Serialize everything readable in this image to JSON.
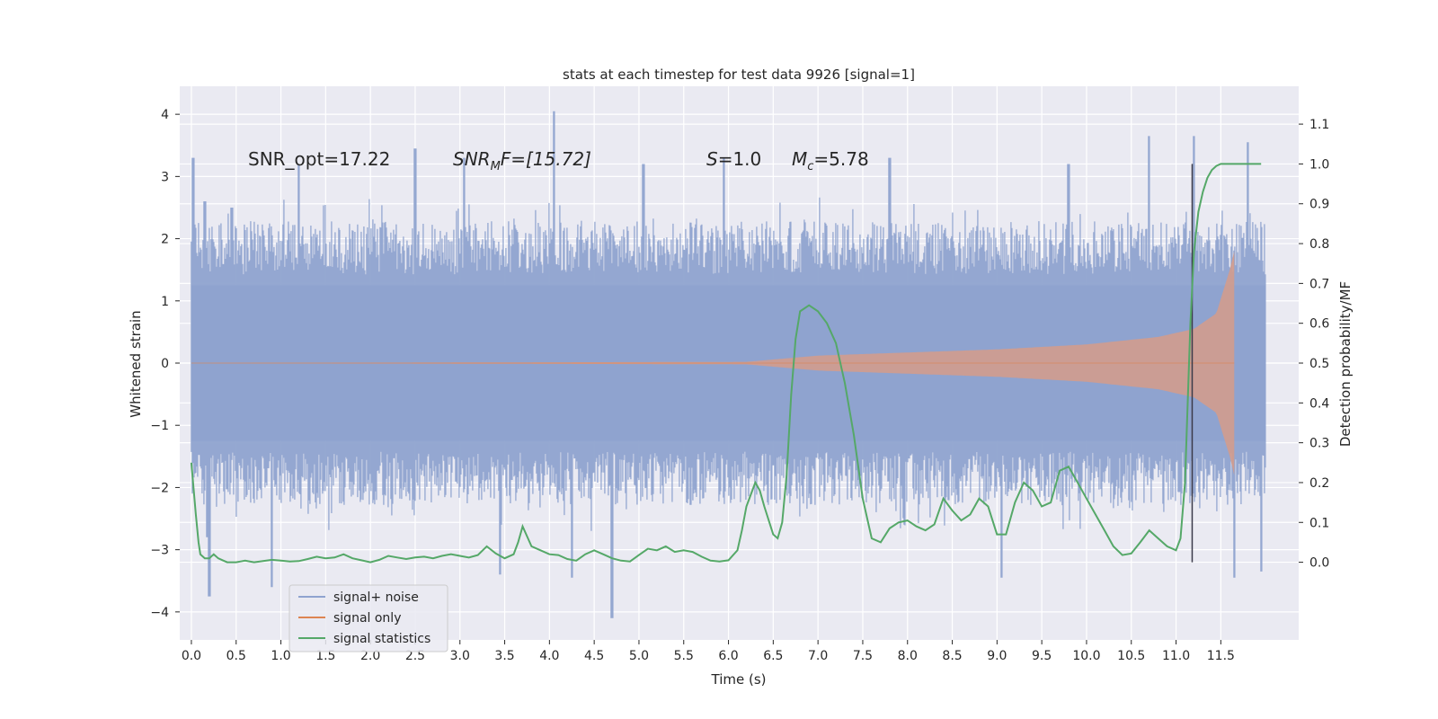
{
  "chart_data": {
    "type": "line",
    "title": "stats at each timestep for test data 9926 [signal=1]",
    "xlabel": "Time (s)",
    "ylabel": "Whitened strain",
    "y2label": "Detection probability/MF",
    "xlim": [
      -0.13,
      12.37
    ],
    "ylim": [
      -4.45,
      4.45
    ],
    "y2lim": [
      -0.195,
      1.195
    ],
    "x_ticks": [
      0.0,
      0.5,
      1.0,
      1.5,
      2.0,
      2.5,
      3.0,
      3.5,
      4.0,
      4.5,
      5.0,
      5.5,
      6.0,
      6.5,
      7.0,
      7.5,
      8.0,
      8.5,
      9.0,
      9.5,
      10.0,
      10.5,
      11.0,
      11.5
    ],
    "x_tick_labels": [
      "0.0",
      "0.5",
      "1.0",
      "1.5",
      "2.0",
      "2.5",
      "3.0",
      "3.5",
      "4.0",
      "4.5",
      "5.0",
      "5.5",
      "6.0",
      "6.5",
      "7.0",
      "7.5",
      "8.0",
      "8.5",
      "9.0",
      "9.5",
      "10.0",
      "10.5",
      "11.0",
      "11.5"
    ],
    "y_ticks": [
      -4,
      -3,
      -2,
      -1,
      0,
      1,
      2,
      3,
      4
    ],
    "y_tick_labels": [
      "−4",
      "−3",
      "−2",
      "−1",
      "0",
      "1",
      "2",
      "3",
      "4"
    ],
    "y2_ticks": [
      0.0,
      0.1,
      0.2,
      0.3,
      0.4,
      0.5,
      0.6,
      0.7,
      0.8,
      0.9,
      1.0,
      1.1
    ],
    "y2_tick_labels": [
      "0.0",
      "0.1",
      "0.2",
      "0.3",
      "0.4",
      "0.5",
      "0.6",
      "0.7",
      "0.8",
      "0.9",
      "1.0",
      "1.1"
    ],
    "grid": true,
    "legend_position": "lower-left",
    "annotations": {
      "snr_opt": "SNR_opt=17.22",
      "snr_mf_sym": "SNR",
      "snr_mf_sub": "M",
      "snr_mf_rest": "F=[15.72]",
      "s_sym": "S",
      "s_rest": "=1.0",
      "mc_sym": "M",
      "mc_sub": "c",
      "mc_rest": "=5.78"
    },
    "vertical_marker_x": 11.18,
    "series": [
      {
        "name": "signal+ noise",
        "axis": "left",
        "color": "#8fa3cf",
        "x_range": [
          0.0,
          12.0
        ],
        "envelope_typical": 1.9,
        "peaks": [
          [
            0.02,
            3.3
          ],
          [
            0.15,
            2.6
          ],
          [
            0.45,
            2.5
          ],
          [
            1.2,
            3.2
          ],
          [
            2.5,
            3.45
          ],
          [
            3.05,
            3.3
          ],
          [
            4.05,
            4.05
          ],
          [
            5.05,
            3.2
          ],
          [
            5.95,
            3.3
          ],
          [
            7.8,
            3.3
          ],
          [
            9.8,
            3.2
          ],
          [
            10.7,
            3.65
          ],
          [
            11.2,
            3.65
          ],
          [
            11.8,
            3.55
          ],
          [
            0.18,
            -2.8
          ],
          [
            0.2,
            -3.75
          ],
          [
            0.9,
            -3.6
          ],
          [
            3.45,
            -3.4
          ],
          [
            4.25,
            -3.45
          ],
          [
            4.7,
            -4.1
          ],
          [
            9.05,
            -3.45
          ],
          [
            11.65,
            -3.45
          ],
          [
            11.95,
            -3.35
          ]
        ]
      },
      {
        "name": "signal only",
        "axis": "left",
        "color": "#dd8452",
        "x_range": [
          0.0,
          11.65
        ],
        "amplitude_points": [
          [
            0.0,
            0.0
          ],
          [
            6.2,
            0.02
          ],
          [
            7.0,
            0.12
          ],
          [
            8.0,
            0.17
          ],
          [
            9.0,
            0.22
          ],
          [
            10.0,
            0.3
          ],
          [
            10.8,
            0.42
          ],
          [
            11.2,
            0.55
          ],
          [
            11.45,
            0.8
          ],
          [
            11.6,
            1.5
          ],
          [
            11.65,
            1.8
          ]
        ]
      },
      {
        "name": "signal statistics",
        "axis": "right",
        "color": "#55a868",
        "x": [
          0.0,
          0.05,
          0.08,
          0.1,
          0.15,
          0.2,
          0.25,
          0.3,
          0.35,
          0.4,
          0.45,
          0.5,
          0.55,
          0.6,
          0.7,
          0.8,
          0.9,
          1.0,
          1.1,
          1.2,
          1.3,
          1.4,
          1.5,
          1.6,
          1.7,
          1.8,
          1.9,
          2.0,
          2.1,
          2.2,
          2.3,
          2.4,
          2.5,
          2.6,
          2.7,
          2.8,
          2.9,
          3.0,
          3.1,
          3.2,
          3.3,
          3.4,
          3.5,
          3.6,
          3.65,
          3.7,
          3.8,
          3.9,
          4.0,
          4.1,
          4.2,
          4.3,
          4.4,
          4.5,
          4.6,
          4.7,
          4.8,
          4.9,
          5.0,
          5.1,
          5.2,
          5.3,
          5.4,
          5.5,
          5.6,
          5.7,
          5.8,
          5.9,
          6.0,
          6.1,
          6.15,
          6.2,
          6.3,
          6.35,
          6.4,
          6.5,
          6.55,
          6.6,
          6.65,
          6.7,
          6.75,
          6.8,
          6.9,
          7.0,
          7.1,
          7.2,
          7.3,
          7.4,
          7.5,
          7.6,
          7.7,
          7.8,
          7.9,
          8.0,
          8.1,
          8.2,
          8.3,
          8.4,
          8.5,
          8.6,
          8.7,
          8.8,
          8.9,
          9.0,
          9.1,
          9.2,
          9.3,
          9.4,
          9.5,
          9.6,
          9.7,
          9.8,
          9.9,
          10.0,
          10.1,
          10.2,
          10.3,
          10.4,
          10.5,
          10.6,
          10.7,
          10.8,
          10.9,
          11.0,
          11.05,
          11.1,
          11.13,
          11.16,
          11.2,
          11.25,
          11.3,
          11.35,
          11.4,
          11.45,
          11.5,
          11.6,
          11.7,
          11.8,
          11.9,
          11.95
        ],
        "y": [
          0.25,
          0.12,
          0.05,
          0.02,
          0.01,
          0.01,
          0.02,
          0.01,
          0.005,
          0.0,
          0.0,
          0.0,
          0.002,
          0.004,
          0.0,
          0.003,
          0.006,
          0.004,
          0.002,
          0.003,
          0.008,
          0.014,
          0.01,
          0.012,
          0.02,
          0.01,
          0.005,
          0.0,
          0.006,
          0.016,
          0.012,
          0.008,
          0.012,
          0.014,
          0.01,
          0.016,
          0.02,
          0.016,
          0.012,
          0.018,
          0.04,
          0.022,
          0.01,
          0.02,
          0.05,
          0.09,
          0.04,
          0.03,
          0.02,
          0.018,
          0.008,
          0.004,
          0.02,
          0.03,
          0.02,
          0.01,
          0.004,
          0.002,
          0.018,
          0.034,
          0.03,
          0.04,
          0.026,
          0.03,
          0.026,
          0.014,
          0.004,
          0.002,
          0.005,
          0.03,
          0.08,
          0.14,
          0.2,
          0.18,
          0.14,
          0.07,
          0.06,
          0.1,
          0.22,
          0.42,
          0.56,
          0.63,
          0.645,
          0.63,
          0.6,
          0.55,
          0.45,
          0.32,
          0.16,
          0.06,
          0.05,
          0.085,
          0.1,
          0.105,
          0.09,
          0.08,
          0.095,
          0.16,
          0.13,
          0.105,
          0.12,
          0.16,
          0.14,
          0.07,
          0.07,
          0.15,
          0.2,
          0.18,
          0.14,
          0.15,
          0.23,
          0.24,
          0.2,
          0.16,
          0.12,
          0.08,
          0.04,
          0.018,
          0.022,
          0.05,
          0.08,
          0.06,
          0.04,
          0.03,
          0.06,
          0.2,
          0.4,
          0.6,
          0.78,
          0.88,
          0.93,
          0.965,
          0.985,
          0.995,
          1.0,
          1.0,
          1.0,
          1.0,
          1.0,
          1.0
        ]
      }
    ]
  }
}
